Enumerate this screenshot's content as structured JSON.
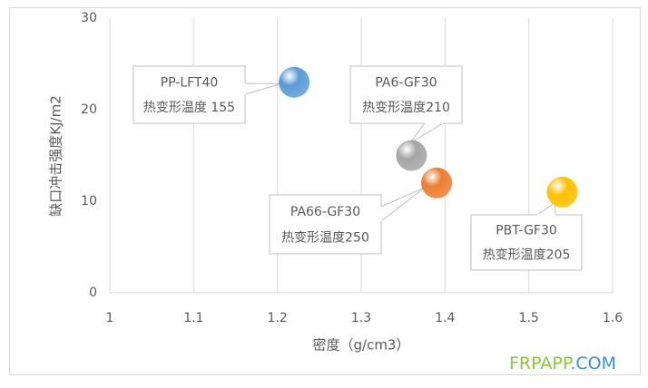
{
  "chart_data": {
    "type": "scatter",
    "x_label": "密度（g/cm3）",
    "y_label": "缺口冲击强度KJ/m2",
    "xlim": [
      1,
      1.6
    ],
    "xticks": [
      1,
      1.1,
      1.2,
      1.3,
      1.4,
      1.5,
      1.6
    ],
    "ylim": [
      0,
      30
    ],
    "yticks": [
      0,
      10,
      20,
      30
    ],
    "grid": true,
    "series": [
      {
        "name": "PP-LFT40",
        "label": "热变形温度 155",
        "color": "#5b9bd5",
        "x": [
          1.22
        ],
        "values": [
          23
        ]
      },
      {
        "name": "PA6-GF30",
        "label": "热变形温度210",
        "color": "#a5a5a5",
        "x": [
          1.36
        ],
        "values": [
          15
        ]
      },
      {
        "name": "PA66-GF30",
        "label": "热变形温度250",
        "color": "#ed7d31",
        "x": [
          1.39
        ],
        "values": [
          12
        ]
      },
      {
        "name": "PBT-GF30",
        "label": "热变形温度205",
        "color": "#ffc000",
        "x": [
          1.54
        ],
        "values": [
          11
        ]
      }
    ],
    "watermark": [
      "FRPAPP",
      ".COM"
    ]
  }
}
